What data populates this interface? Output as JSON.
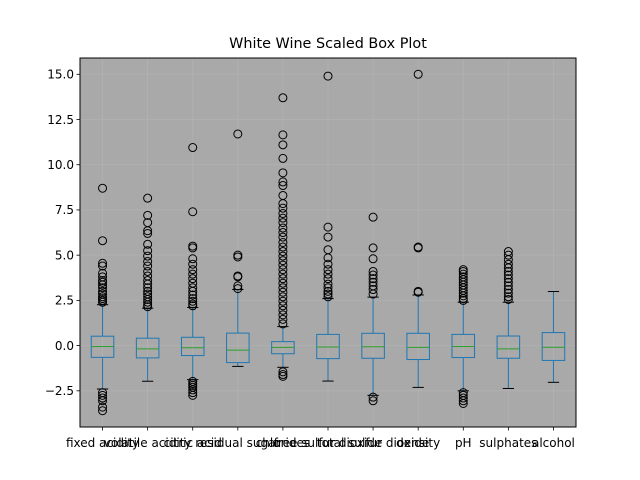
{
  "chart_data": {
    "type": "box",
    "title": "White Wine Scaled Box Plot",
    "xlabel": "",
    "ylabel": "",
    "ylim": [
      -4.5,
      15.9
    ],
    "yticks": [
      -2.5,
      0.0,
      2.5,
      5.0,
      7.5,
      10.0,
      12.5,
      15.0
    ],
    "ytick_labels": [
      "−2.5",
      "0.0",
      "2.5",
      "5.0",
      "7.5",
      "10.0",
      "12.5",
      "15.0"
    ],
    "grid": true,
    "colors": {
      "plot_background": "#a9a9a9",
      "box": "#1f77b4",
      "median": "#2ca02c",
      "whisker_cap": "#000000",
      "flier": "#000000",
      "grid": "#b7b7b7"
    },
    "categories": [
      "fixed acidity",
      "volatile acidity",
      "citric acid",
      "residual sugar",
      "chlorides",
      "free sulfur dioxide",
      "total sulfur dioxide",
      "density",
      "pH",
      "sulphates",
      "alcohol"
    ],
    "boxes": [
      {
        "q1": -0.65,
        "median": -0.05,
        "q3": 0.52,
        "whisker_low": -2.4,
        "whisker_high": 2.26,
        "fliers": [
          8.7,
          5.8,
          4.55,
          4.4,
          4.0,
          3.8,
          3.6,
          3.5,
          3.35,
          3.2,
          3.0,
          2.85,
          2.7,
          2.6,
          2.5,
          2.4,
          -2.6,
          -2.75,
          -2.9,
          -3.05,
          -3.4,
          -3.6
        ]
      },
      {
        "q1": -0.68,
        "median": -0.18,
        "q3": 0.41,
        "whisker_low": -1.97,
        "whisker_high": 2.07,
        "fliers": [
          8.15,
          7.2,
          6.8,
          6.35,
          6.2,
          5.6,
          5.25,
          4.95,
          4.65,
          4.4,
          4.1,
          3.85,
          3.6,
          3.4,
          3.2,
          3.0,
          2.85,
          2.7,
          2.55,
          2.4,
          2.25,
          2.15
        ]
      },
      {
        "q1": -0.55,
        "median": -0.12,
        "q3": 0.46,
        "whisker_low": -1.88,
        "whisker_high": 2.11,
        "fliers": [
          10.95,
          7.4,
          5.5,
          5.4,
          4.8,
          4.5,
          4.2,
          3.95,
          3.7,
          3.45,
          3.2,
          3.0,
          2.8,
          2.6,
          2.45,
          2.3,
          2.2,
          -1.98,
          -2.1,
          -2.2,
          -2.3,
          -2.45,
          -2.6,
          -2.75
        ]
      },
      {
        "q1": -0.94,
        "median": -0.25,
        "q3": 0.69,
        "whisker_low": -1.15,
        "whisker_high": 3.1,
        "fliers": [
          11.7,
          5.0,
          4.9,
          3.85,
          3.8,
          3.3,
          3.15
        ]
      },
      {
        "q1": -0.45,
        "median": -0.1,
        "q3": 0.22,
        "whisker_low": -1.2,
        "whisker_high": 1.05,
        "fliers": [
          13.7,
          11.65,
          11.1,
          10.35,
          9.55,
          9.05,
          8.85,
          8.3,
          7.85,
          7.6,
          7.3,
          7.05,
          6.8,
          6.5,
          6.25,
          6.0,
          5.7,
          5.45,
          5.2,
          4.95,
          4.7,
          4.45,
          4.2,
          3.95,
          3.7,
          3.45,
          3.2,
          2.95,
          2.7,
          2.45,
          2.2,
          1.95,
          1.7,
          1.45,
          1.2,
          -1.45,
          -1.6,
          -1.7
        ]
      },
      {
        "q1": -0.72,
        "median": -0.08,
        "q3": 0.62,
        "whisker_low": -1.96,
        "whisker_high": 2.6,
        "fliers": [
          14.9,
          6.55,
          6.0,
          5.3,
          4.85,
          4.5,
          4.2,
          3.95,
          3.7,
          3.4,
          3.2,
          3.0,
          2.85,
          2.7
        ]
      },
      {
        "q1": -0.7,
        "median": -0.06,
        "q3": 0.68,
        "whisker_low": -2.75,
        "whisker_high": 2.68,
        "fliers": [
          7.1,
          5.4,
          4.8,
          4.1,
          3.9,
          3.7,
          3.5,
          3.3,
          3.1,
          2.85,
          -2.85,
          -3.05
        ]
      },
      {
        "q1": -0.77,
        "median": -0.1,
        "q3": 0.68,
        "whisker_low": -2.31,
        "whisker_high": 2.8,
        "fliers": [
          15.0,
          5.45,
          5.4,
          3.0,
          2.95
        ]
      },
      {
        "q1": -0.66,
        "median": -0.05,
        "q3": 0.62,
        "whisker_low": -2.5,
        "whisker_high": 2.4,
        "fliers": [
          4.2,
          4.1,
          3.95,
          3.8,
          3.65,
          3.5,
          3.35,
          3.2,
          3.05,
          2.9,
          2.75,
          2.6,
          2.5,
          -2.6,
          -2.75,
          -2.9,
          -3.05,
          -3.2
        ]
      },
      {
        "q1": -0.7,
        "median": -0.18,
        "q3": 0.53,
        "whisker_low": -2.37,
        "whisker_high": 2.4,
        "fliers": [
          5.2,
          5.0,
          4.75,
          4.5,
          4.3,
          4.1,
          3.9,
          3.7,
          3.5,
          3.3,
          3.1,
          2.9,
          2.7,
          2.55
        ]
      },
      {
        "q1": -0.82,
        "median": -0.09,
        "q3": 0.72,
        "whisker_low": -2.03,
        "whisker_high": 2.99,
        "fliers": []
      }
    ]
  }
}
